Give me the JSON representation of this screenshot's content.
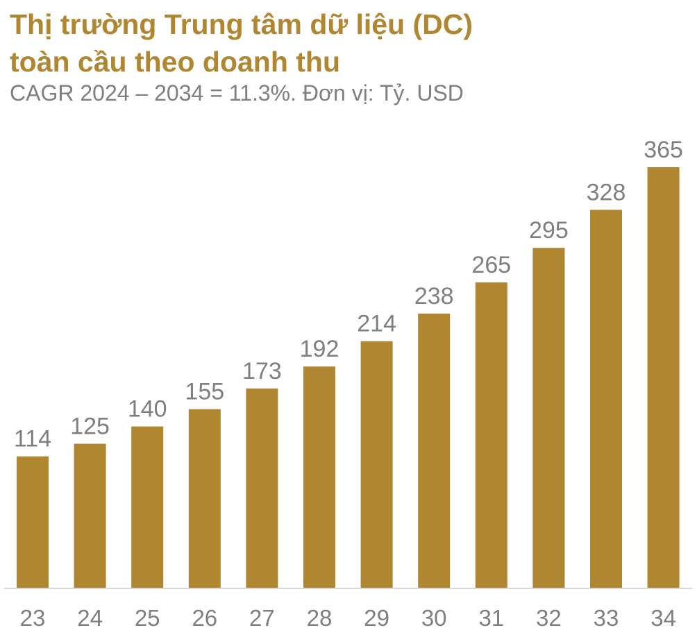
{
  "chart_data": {
    "type": "bar",
    "title": "Thị trường Trung tâm dữ liệu (DC) toàn cầu theo doanh thu",
    "title_lines": [
      "Thị trường Trung tâm dữ liệu (DC)",
      "toàn cầu theo doanh thu"
    ],
    "subtitle": "CAGR 2024 – 2034 = 11.3%. Đơn vị: Tỷ. USD",
    "categories": [
      "23",
      "24",
      "25",
      "26",
      "27",
      "28",
      "29",
      "30",
      "31",
      "32",
      "33",
      "34"
    ],
    "values": [
      114,
      125,
      140,
      155,
      173,
      192,
      214,
      238,
      265,
      295,
      328,
      365
    ],
    "xlabel": "",
    "ylabel": "",
    "ylim": [
      0,
      365
    ],
    "grid": false,
    "legend": "none",
    "data_labels": true,
    "colors": {
      "bar": "#b08630",
      "text": "#7f7f7f",
      "title": "#b08630",
      "axis": "#d9d9d9"
    }
  }
}
